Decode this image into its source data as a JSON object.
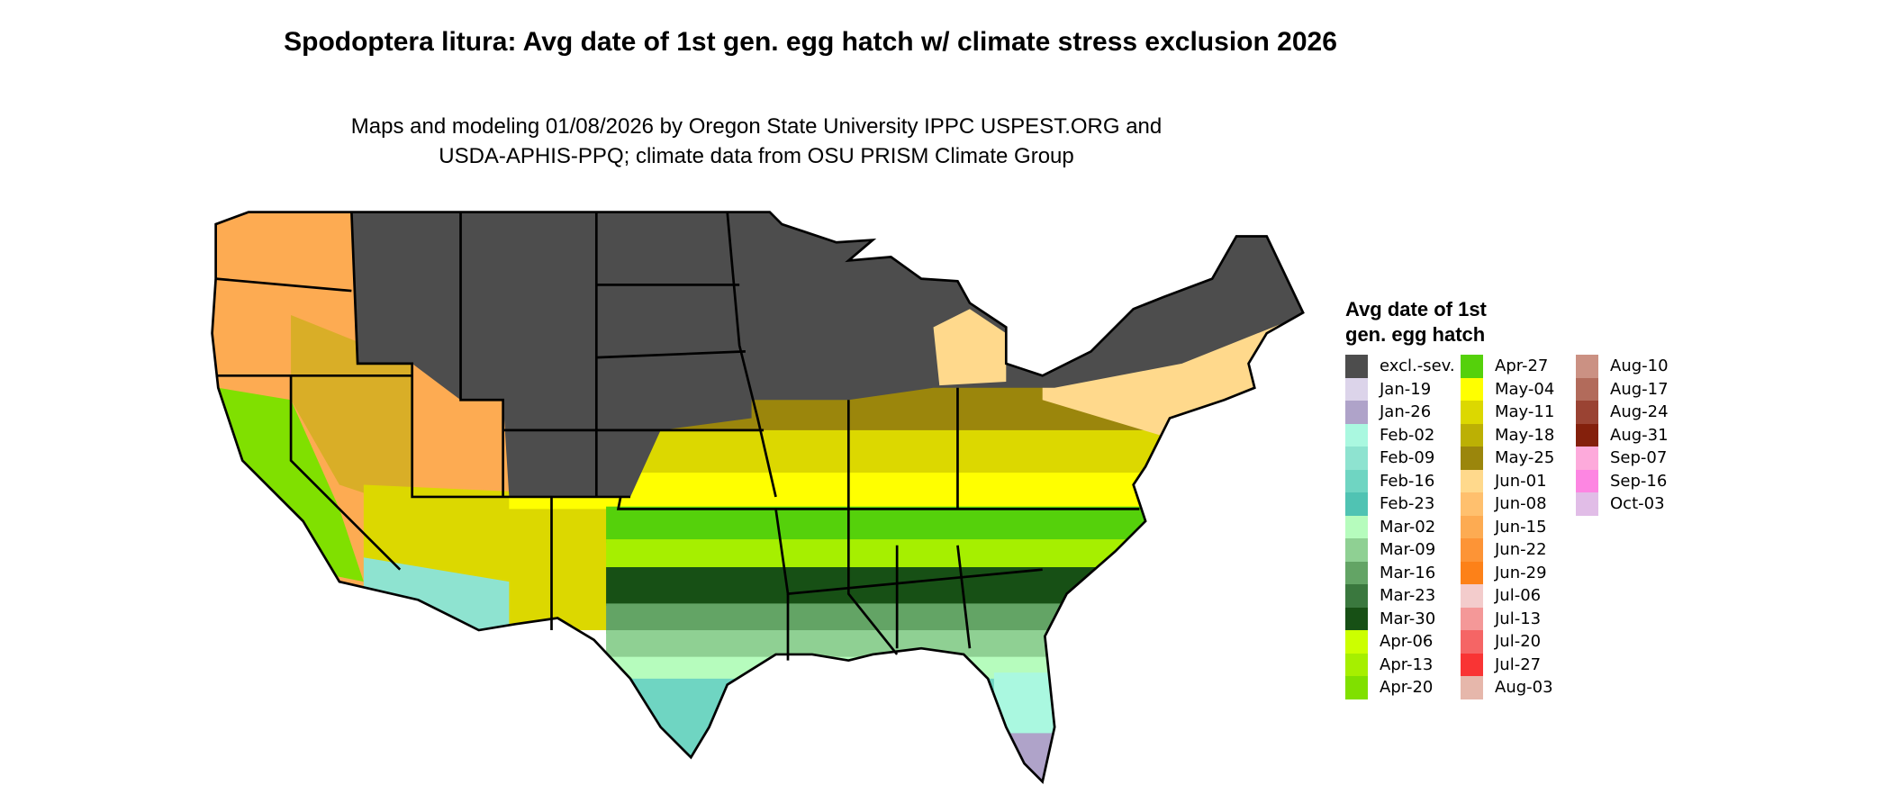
{
  "chart_data": {
    "type": "map",
    "title": "Spodoptera litura: Avg date of 1st gen. egg hatch w/ climate stress exclusion 2026",
    "subtitle_lines": [
      "Maps and modeling 01/08/2026 by Oregon State University IPPC USPEST.ORG and",
      "USDA-APHIS-PPQ; climate data from OSU PRISM Climate Group"
    ],
    "legend": {
      "title_lines": [
        "Avg date of 1st",
        "gen. egg hatch"
      ],
      "position": "right",
      "items": [
        {
          "label": "excl.-sev.",
          "color": "#4d4d4d"
        },
        {
          "label": "Jan-19",
          "color": "#dcd4ea"
        },
        {
          "label": "Jan-26",
          "color": "#afa3c9"
        },
        {
          "label": "Feb-02",
          "color": "#aaf8e0"
        },
        {
          "label": "Feb-09",
          "color": "#8ee3d0"
        },
        {
          "label": "Feb-16",
          "color": "#6fd5c2"
        },
        {
          "label": "Feb-23",
          "color": "#50c3b3"
        },
        {
          "label": "Mar-02",
          "color": "#b6fcbd"
        },
        {
          "label": "Mar-09",
          "color": "#8fd093"
        },
        {
          "label": "Mar-16",
          "color": "#63a465"
        },
        {
          "label": "Mar-23",
          "color": "#3a783e"
        },
        {
          "label": "Mar-30",
          "color": "#175015"
        },
        {
          "label": "Apr-06",
          "color": "#ccff00"
        },
        {
          "label": "Apr-13",
          "color": "#a6ef00"
        },
        {
          "label": "Apr-20",
          "color": "#80e000"
        },
        {
          "label": "Apr-27",
          "color": "#55d10b"
        },
        {
          "label": "May-04",
          "color": "#ffff00"
        },
        {
          "label": "May-11",
          "color": "#dcd800"
        },
        {
          "label": "May-18",
          "color": "#bcb004"
        },
        {
          "label": "May-25",
          "color": "#9b860c"
        },
        {
          "label": "Jun-01",
          "color": "#ffd98c"
        },
        {
          "label": "Jun-08",
          "color": "#ffc06e"
        },
        {
          "label": "Jun-15",
          "color": "#fdab52"
        },
        {
          "label": "Jun-22",
          "color": "#fd9436"
        },
        {
          "label": "Jun-29",
          "color": "#fd8118"
        },
        {
          "label": "Jul-06",
          "color": "#f3cccc"
        },
        {
          "label": "Jul-13",
          "color": "#f49898"
        },
        {
          "label": "Jul-20",
          "color": "#f56565"
        },
        {
          "label": "Jul-27",
          "color": "#f93434"
        },
        {
          "label": "Aug-03",
          "color": "#e6b7ab"
        },
        {
          "label": "Aug-10",
          "color": "#cb9183"
        },
        {
          "label": "Aug-17",
          "color": "#b26b5b"
        },
        {
          "label": "Aug-24",
          "color": "#9a4333"
        },
        {
          "label": "Aug-31",
          "color": "#84200c"
        },
        {
          "label": "Sep-07",
          "color": "#fdaadb"
        },
        {
          "label": "Sep-16",
          "color": "#fd86e2"
        },
        {
          "label": "Oct-03",
          "color": "#e1bde7"
        }
      ]
    }
  }
}
